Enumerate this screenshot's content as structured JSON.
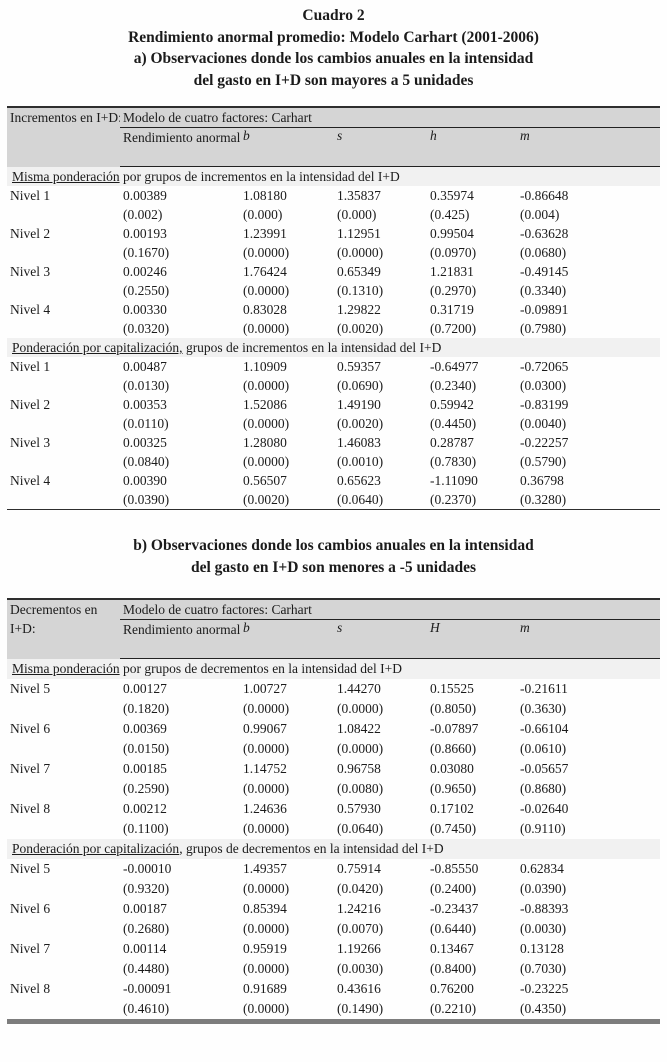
{
  "page": {
    "title_line1": "Cuadro 2",
    "title_line2": "Rendimiento anormal promedio: Modelo Carhart (2001-2006)",
    "heading_a": [
      "a) Observaciones donde los cambios anuales en la intensidad",
      "del gasto en I+D son mayores a 5 unidades"
    ],
    "heading_b": [
      "b) Observaciones donde los cambios anuales en la intensidad",
      "del gasto en I+D son menores a -5 unidades"
    ]
  },
  "colors": {
    "header_bg": "#d5d5d5",
    "section_bg": "#f1f1f1",
    "rule_dark": "#2e2e2e",
    "thick_bottom_rule": "#7d7d7d"
  },
  "tables": [
    {
      "row_header_lines": [
        "Incrementos en I+D:"
      ],
      "model_header": "Modelo de cuatro factores: Carhart",
      "return_header": "Rendimiento anormal",
      "factors": [
        "b",
        "s",
        "h",
        "m"
      ],
      "sections": [
        {
          "label_underlined": "Misma ponderación",
          "label_rest": " por grupos de incrementos en la intensidad del I+D",
          "rows": [
            {
              "level": "Nivel 1",
              "values": [
                "0.00389",
                "1.08180",
                "1.35837",
                "0.35974",
                "-0.86648"
              ],
              "pvalues": [
                "(0.002)",
                "(0.000)",
                "(0.000)",
                "(0.425)",
                "(0.004)"
              ]
            },
            {
              "level": "Nivel 2",
              "values": [
                "0.00193",
                "1.23991",
                "1.12951",
                "0.99504",
                "-0.63628"
              ],
              "pvalues": [
                "(0.1670)",
                "(0.0000)",
                "(0.0000)",
                "(0.0970)",
                "(0.0680)"
              ]
            },
            {
              "level": "Nivel 3",
              "values": [
                "0.00246",
                "1.76424",
                "0.65349",
                "1.21831",
                "-0.49145"
              ],
              "pvalues": [
                "(0.2550)",
                "(0.0000)",
                "(0.1310)",
                "(0.2970)",
                "(0.3340)"
              ]
            },
            {
              "level": "Nivel 4",
              "values": [
                "0.00330",
                "0.83028",
                "1.29822",
                "0.31719",
                "-0.09891"
              ],
              "pvalues": [
                "(0.0320)",
                "(0.0000)",
                "(0.0020)",
                "(0.7200)",
                "(0.7980)"
              ]
            }
          ]
        },
        {
          "label_underlined": "Ponderación por capitalización,",
          "label_rest": " grupos de incrementos en la intensidad del I+D",
          "rows": [
            {
              "level": "Nivel 1",
              "values": [
                "0.00487",
                "1.10909",
                "0.59357",
                "-0.64977",
                "-0.72065"
              ],
              "pvalues": [
                "(0.0130)",
                "(0.0000)",
                "(0.0690)",
                "(0.2340)",
                "(0.0300)"
              ]
            },
            {
              "level": "Nivel 2",
              "values": [
                "0.00353",
                "1.52086",
                "1.49190",
                "0.59942",
                "-0.83199"
              ],
              "pvalues": [
                "(0.0110)",
                "(0.0000)",
                "(0.0020)",
                "(0.4450)",
                "(0.0040)"
              ]
            },
            {
              "level": "Nivel 3",
              "values": [
                "0.00325",
                "1.28080",
                "1.46083",
                "0.28787",
                "-0.22257"
              ],
              "pvalues": [
                "(0.0840)",
                "(0.0000)",
                "(0.0010)",
                "(0.7830)",
                "(0.5790)"
              ]
            },
            {
              "level": "Nivel 4",
              "values": [
                "0.00390",
                "0.56507",
                "0.65623",
                "-1.11090",
                "0.36798"
              ],
              "pvalues": [
                "(0.0390)",
                "(0.0020)",
                "(0.0640)",
                "(0.2370)",
                "(0.3280)"
              ]
            }
          ]
        }
      ]
    },
    {
      "row_header_lines": [
        "Decrementos en",
        "I+D:"
      ],
      "model_header": "Modelo de cuatro factores: Carhart",
      "return_header": "Rendimiento anormal",
      "factors": [
        "b",
        "s",
        "H",
        "m"
      ],
      "sections": [
        {
          "label_underlined": "Misma ponderación",
          "label_rest": " por grupos de decrementos en la intensidad del I+D",
          "rows": [
            {
              "level": "Nivel 5",
              "values": [
                "0.00127",
                "1.00727",
                "1.44270",
                "0.15525",
                "-0.21611"
              ],
              "pvalues": [
                "(0.1820)",
                "(0.0000)",
                "(0.0000)",
                "(0.8050)",
                "(0.3630)"
              ]
            },
            {
              "level": "Nivel 6",
              "values": [
                "0.00369",
                "0.99067",
                "1.08422",
                "-0.07897",
                "-0.66104"
              ],
              "pvalues": [
                "(0.0150)",
                "(0.0000)",
                "(0.0000)",
                "(0.8660)",
                "(0.0610)"
              ]
            },
            {
              "level": "Nivel 7",
              "values": [
                "0.00185",
                "1.14752",
                "0.96758",
                "0.03080",
                "-0.05657"
              ],
              "pvalues": [
                "(0.2590)",
                "(0.0000)",
                "(0.0080)",
                "(0.9650)",
                "(0.8680)"
              ]
            },
            {
              "level": "Nivel 8",
              "values": [
                "0.00212",
                "1.24636",
                "0.57930",
                "0.17102",
                "-0.02640"
              ],
              "pvalues": [
                "(0.1100)",
                "(0.0000)",
                "(0.0640)",
                "(0.7450)",
                "(0.9110)"
              ]
            }
          ]
        },
        {
          "label_underlined": "Ponderación por capitalización",
          "label_rest": ", grupos de decrementos en la intensidad del I+D",
          "rows": [
            {
              "level": "Nivel 5",
              "values": [
                "-0.00010",
                "1.49357",
                "0.75914",
                "-0.85550",
                "0.62834"
              ],
              "pvalues": [
                "(0.9320)",
                "(0.0000)",
                "(0.0420)",
                "(0.2400)",
                "(0.0390)"
              ]
            },
            {
              "level": "Nivel 6",
              "values": [
                "0.00187",
                "0.85394",
                "1.24216",
                "-0.23437",
                "-0.88393"
              ],
              "pvalues": [
                "(0.2680)",
                "(0.0000)",
                "(0.0070)",
                "(0.6440)",
                "(0.0030)"
              ]
            },
            {
              "level": "Nivel 7",
              "values": [
                "0.00114",
                "0.95919",
                "1.19266",
                "0.13467",
                "0.13128"
              ],
              "pvalues": [
                "(0.4480)",
                "(0.0000)",
                "(0.0030)",
                "(0.8400)",
                "(0.7030)"
              ]
            },
            {
              "level": "Nivel 8",
              "values": [
                "-0.00091",
                "0.91689",
                "0.43616",
                "0.76200",
                "-0.23225"
              ],
              "pvalues": [
                "(0.4610)",
                "(0.0000)",
                "(0.1490)",
                "(0.2210)",
                "(0.4350)"
              ]
            }
          ]
        }
      ]
    }
  ]
}
